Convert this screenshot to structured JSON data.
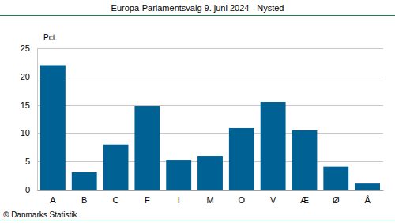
{
  "chart_data": {
    "type": "bar",
    "title": "Europa-Parlamentsvalg 9. juni 2024 - Nysted",
    "y_label": "Pct.",
    "source": "© Danmarks Statistik",
    "categories": [
      "A",
      "B",
      "C",
      "F",
      "I",
      "M",
      "O",
      "V",
      "Æ",
      "Ø",
      "Å"
    ],
    "values": [
      22.0,
      3.1,
      8.0,
      14.8,
      5.3,
      6.0,
      10.9,
      15.5,
      10.5,
      4.1,
      1.1
    ],
    "color": "#006194",
    "ylim": [
      0,
      25
    ],
    "yticks": [
      0,
      5,
      10,
      15,
      20,
      25
    ],
    "grid": true
  }
}
